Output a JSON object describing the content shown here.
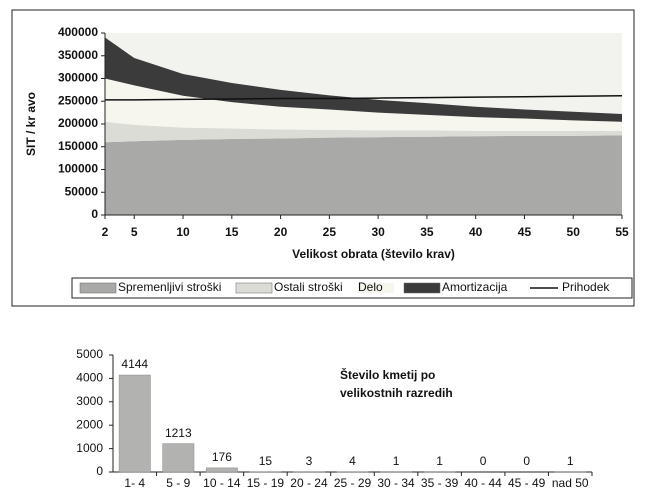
{
  "chart_data": [
    {
      "type": "stacked_area",
      "ylabel": "SIT / kr avo",
      "xlabel": "Velikost obrata (število krav)",
      "x": [
        2,
        5,
        10,
        15,
        20,
        25,
        30,
        35,
        40,
        45,
        50,
        55
      ],
      "xlim": [
        2,
        55
      ],
      "xticks": [
        2,
        5,
        10,
        15,
        20,
        25,
        30,
        35,
        40,
        45,
        50,
        55
      ],
      "ylim": [
        0,
        400000
      ],
      "yticks": [
        0,
        50000,
        100000,
        150000,
        200000,
        250000,
        300000,
        350000,
        400000
      ],
      "series": [
        {
          "name": "Spremenljivi stroški",
          "color": "#a9a9a7",
          "values": [
            160000,
            162000,
            165000,
            167000,
            168000,
            170000,
            171000,
            172000,
            173000,
            174000,
            174000,
            175000
          ]
        },
        {
          "name": "Ostali stroški",
          "color": "#dcdcd6",
          "values": [
            45000,
            36000,
            27000,
            23000,
            20000,
            17000,
            15000,
            14000,
            12000,
            11000,
            11000,
            10000
          ]
        },
        {
          "name": "Delo",
          "color": "#f6f5ee",
          "values": [
            95000,
            87000,
            70000,
            58000,
            50000,
            45000,
            39000,
            34000,
            30000,
            27000,
            23000,
            20000
          ]
        },
        {
          "name": "Amortizacija",
          "color": "#3b3b3b",
          "values": [
            90000,
            60000,
            48000,
            42000,
            37000,
            31000,
            28000,
            26000,
            23000,
            20000,
            19000,
            17000
          ]
        },
        {
          "name": "Prihodek",
          "color": "#111111",
          "kind": "line",
          "values": [
            253000,
            253000,
            254000,
            255000,
            256000,
            256000,
            257000,
            258000,
            259000,
            260000,
            261000,
            262000
          ]
        }
      ]
    },
    {
      "type": "bar",
      "title": [
        "Število kmetij po",
        "velikostnih razredih"
      ],
      "categories": [
        "1- 4",
        "5 - 9",
        "10 - 14",
        "15 - 19",
        "20 - 24",
        "25 - 29",
        "30 - 34",
        "35 - 39",
        "40 - 44",
        "45 - 49",
        "nad 50"
      ],
      "values": [
        4144,
        1213,
        176,
        15,
        3,
        4,
        1,
        1,
        0,
        0,
        1
      ],
      "color": "#b2b2b0",
      "ylim": [
        0,
        5000
      ],
      "yticks": [
        0,
        1000,
        2000,
        3000,
        4000,
        5000
      ]
    }
  ]
}
